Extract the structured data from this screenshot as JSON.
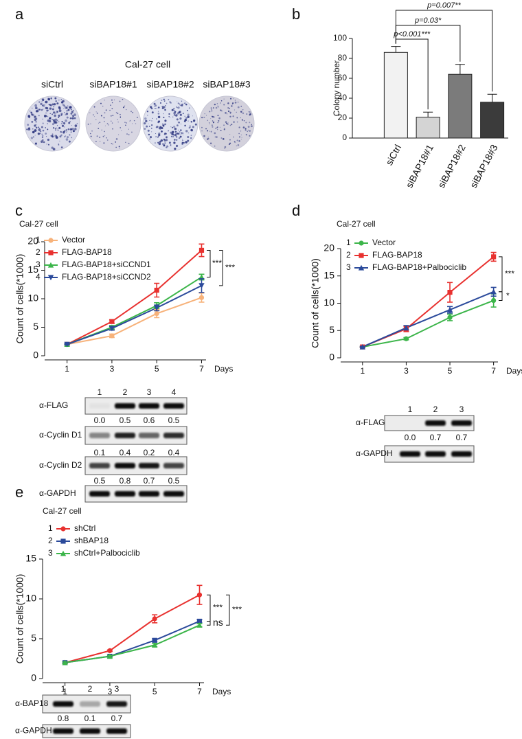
{
  "panel_labels": [
    "a",
    "b",
    "c",
    "d",
    "e"
  ],
  "colony_images": {
    "title": "Cal-27 cell",
    "labels": [
      "siCtrl",
      "siBAP18#1",
      "siBAP18#2",
      "siBAP18#3"
    ]
  },
  "chart_data": [
    {
      "type": "bar",
      "y_label": "Colony number",
      "categories": [
        "siCtrl",
        "siBAP18#1",
        "siBAP18#2",
        "siBAP18#3"
      ],
      "values": [
        86,
        21,
        64,
        36
      ],
      "errors": [
        6,
        5,
        10,
        8
      ],
      "colors": [
        "#f2f2f2",
        "#d4d4d4",
        "#7b7b7b",
        "#3b3b3b"
      ],
      "ylim": [
        0,
        100
      ],
      "yticks": [
        0,
        20,
        40,
        60,
        80,
        100
      ],
      "annotations": [
        "p<0.001***",
        "p=0.03*",
        "p=0.007**"
      ]
    },
    {
      "type": "line",
      "title": "Cal-27 cell",
      "x_label": "Days",
      "y_label": "Count of cells(*1000)",
      "x": [
        1,
        3,
        5,
        7
      ],
      "xlim": [
        0,
        7.2
      ],
      "xticks": [
        1,
        3,
        5,
        7
      ],
      "ylim": [
        0,
        20
      ],
      "yticks": [
        0,
        5,
        10,
        15,
        20
      ],
      "series": [
        {
          "number": "1",
          "name": "Vector",
          "color": "#f7b27a",
          "marker": "circle",
          "values": [
            2,
            3.5,
            7.4,
            10.2
          ],
          "errors": [
            0.1,
            0.3,
            0.7,
            0.8
          ]
        },
        {
          "number": "2",
          "name": "FLAG-BAP18",
          "color": "#e8312f",
          "marker": "square",
          "values": [
            2,
            6,
            11.5,
            18.5
          ],
          "errors": [
            0.1,
            0.3,
            1.2,
            1.1
          ]
        },
        {
          "number": "3",
          "name": "FLAG-BAP18+siCCND1",
          "color": "#3cb54a",
          "marker": "triangle",
          "values": [
            2,
            5,
            8.8,
            13.8
          ],
          "errors": [
            0.1,
            0.3,
            0.5,
            0.5
          ]
        },
        {
          "number": "4",
          "name": "FLAG-BAP18+siCCND2",
          "color": "#2b4a9b",
          "marker": "triangle-down",
          "values": [
            2,
            4.8,
            8.4,
            12.3
          ],
          "errors": [
            0.1,
            0.3,
            0.5,
            1.2
          ]
        }
      ],
      "annotations": [
        "***",
        "***"
      ]
    },
    {
      "type": "line",
      "title": "Cal-27 cell",
      "x_label": "Days",
      "y_label": "Count of cells(*1000)",
      "x": [
        1,
        3,
        5,
        7
      ],
      "xlim": [
        0,
        7.2
      ],
      "xticks": [
        1,
        3,
        5,
        7
      ],
      "ylim": [
        0,
        20
      ],
      "yticks": [
        0,
        5,
        10,
        15,
        20
      ],
      "series": [
        {
          "number": "1",
          "name": "Vector",
          "color": "#3cb54a",
          "marker": "circle",
          "values": [
            2,
            3.5,
            7.4,
            10.5
          ],
          "errors": [
            0.1,
            0.2,
            0.6,
            1.2
          ]
        },
        {
          "number": "2",
          "name": "FLAG-BAP18",
          "color": "#e8312f",
          "marker": "square",
          "values": [
            2,
            5.3,
            12,
            18.5
          ],
          "errors": [
            0.1,
            0.5,
            1.8,
            0.8
          ]
        },
        {
          "number": "3",
          "name": "FLAG-BAP18+Palbociclib",
          "color": "#2b4a9b",
          "marker": "triangle",
          "values": [
            2,
            5.5,
            8.8,
            12.1
          ],
          "errors": [
            0.1,
            0.4,
            0.6,
            0.8
          ]
        }
      ],
      "annotations": [
        "***",
        "*"
      ]
    },
    {
      "type": "line",
      "title": "Cal-27 cell",
      "x_label": "Days",
      "y_label": "Count of cells(*1000)",
      "x": [
        1,
        3,
        5,
        7
      ],
      "xlim": [
        0,
        7.2
      ],
      "xticks": [
        1,
        3,
        5,
        7
      ],
      "ylim": [
        0,
        15
      ],
      "yticks": [
        0,
        5,
        10,
        15
      ],
      "series": [
        {
          "number": "1",
          "name": "shCtrl",
          "color": "#e8312f",
          "marker": "circle",
          "values": [
            2,
            3.5,
            7.5,
            10.5
          ],
          "errors": [
            0.1,
            0.1,
            0.5,
            1.2
          ]
        },
        {
          "number": "2",
          "name": "shBAP18",
          "color": "#2b4a9b",
          "marker": "square",
          "values": [
            2,
            2.8,
            4.8,
            7.2
          ],
          "errors": [
            0.1,
            0.1,
            0.2,
            0.2
          ]
        },
        {
          "number": "3",
          "name": "shCtrl+Palbociclib",
          "color": "#3cb54a",
          "marker": "triangle",
          "values": [
            2,
            2.8,
            4.2,
            6.7
          ],
          "errors": [
            0.1,
            0.1,
            0.2,
            0.2
          ]
        }
      ],
      "annotations": [
        "***",
        "ns",
        "***"
      ]
    }
  ],
  "blots": [
    {
      "lanes": [
        "1",
        "2",
        "3",
        "4"
      ],
      "rows": [
        {
          "label": "α-FLAG",
          "values": [
            "0.0",
            "0.5",
            "0.6",
            "0.5"
          ]
        },
        {
          "label": "α-Cyclin D1",
          "values": [
            "0.1",
            "0.4",
            "0.2",
            "0.4"
          ]
        },
        {
          "label": "α-Cyclin D2",
          "values": [
            "0.5",
            "0.8",
            "0.7",
            "0.5"
          ]
        },
        {
          "label": "α-GAPDH"
        }
      ]
    },
    {
      "lanes": [
        "1",
        "2",
        "3"
      ],
      "rows": [
        {
          "label": "α-FLAG",
          "values": [
            "0.0",
            "0.7",
            "0.7"
          ]
        },
        {
          "label": "α-GAPDH"
        }
      ]
    },
    {
      "lanes": [
        "1",
        "2",
        "3"
      ],
      "rows": [
        {
          "label": "α-BAP18",
          "values": [
            "0.8",
            "0.1",
            "0.7"
          ]
        },
        {
          "label": "α-GAPDH"
        }
      ]
    }
  ]
}
